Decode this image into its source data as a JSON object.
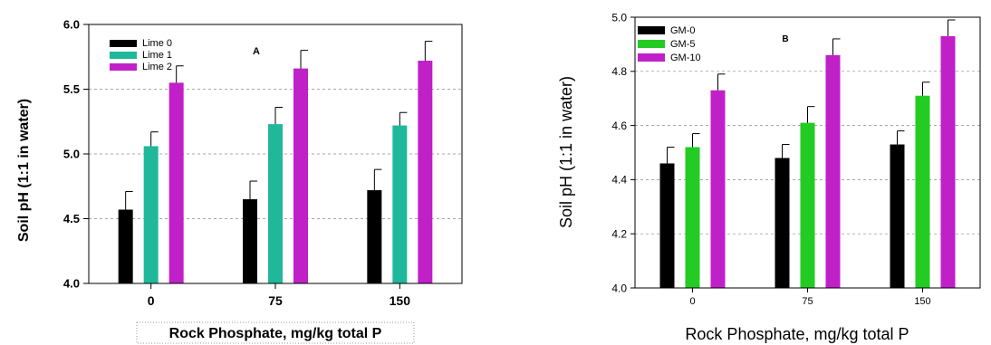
{
  "chart_data": [
    {
      "type": "bar",
      "panel_label": "A",
      "title": "",
      "xlabel": "Rock Phosphate, mg/kg total P",
      "ylabel": "Soil pH (1:1 in water)",
      "categories": [
        "0",
        "75",
        "150"
      ],
      "ylim": [
        4.0,
        6.0
      ],
      "yticks": [
        "4.0",
        "4.5",
        "5.0",
        "5.5",
        "6.0"
      ],
      "grid": true,
      "legend_position": "top-left",
      "series": [
        {
          "name": "Lime 0",
          "values": [
            4.57,
            4.65,
            4.72
          ],
          "errors": [
            0.14,
            0.14,
            0.16
          ],
          "color": "#000000"
        },
        {
          "name": "Lime 1",
          "values": [
            5.06,
            5.23,
            5.22
          ],
          "errors": [
            0.11,
            0.13,
            0.1
          ],
          "color": "#1fb89a"
        },
        {
          "name": "Lime 2",
          "values": [
            5.55,
            5.66,
            5.72
          ],
          "errors": [
            0.13,
            0.14,
            0.15
          ],
          "color": "#c020c8"
        }
      ]
    },
    {
      "type": "bar",
      "panel_label": "B",
      "title": "",
      "xlabel": "Rock Phosphate, mg/kg total P",
      "ylabel": "Soil pH (1:1 in water)",
      "categories": [
        "0",
        "75",
        "150"
      ],
      "ylim": [
        4.0,
        5.0
      ],
      "yticks": [
        "4.0",
        "4.2",
        "4.4",
        "4.6",
        "4.8",
        "5.0"
      ],
      "grid": true,
      "legend_position": "top-left",
      "series": [
        {
          "name": "GM-0",
          "values": [
            4.46,
            4.48,
            4.53
          ],
          "errors": [
            0.06,
            0.05,
            0.05
          ],
          "color": "#000000"
        },
        {
          "name": "GM-5",
          "values": [
            4.52,
            4.61,
            4.71
          ],
          "errors": [
            0.05,
            0.06,
            0.05
          ],
          "color": "#22cc22"
        },
        {
          "name": "GM-10",
          "values": [
            4.73,
            4.86,
            4.93
          ],
          "errors": [
            0.06,
            0.06,
            0.06
          ],
          "color": "#c020c8"
        }
      ]
    }
  ]
}
